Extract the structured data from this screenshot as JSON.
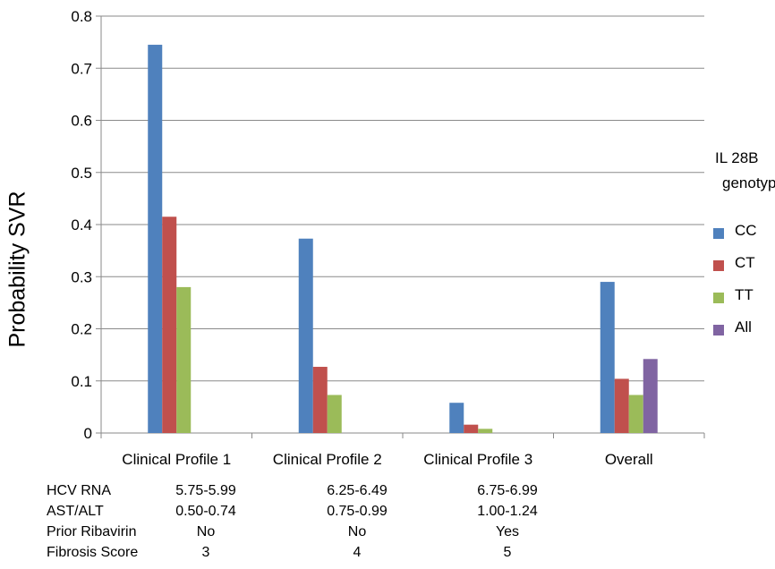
{
  "chart_data": {
    "type": "bar",
    "categories": [
      "Clinical Profile 1",
      "Clinical Profile 2",
      "Clinical Profile 3",
      "Overall"
    ],
    "series": [
      {
        "name": "CC",
        "color": "#4F81BD",
        "values": [
          0.745,
          0.373,
          0.058,
          0.29
        ]
      },
      {
        "name": "CT",
        "color": "#C0504D",
        "values": [
          0.415,
          0.127,
          0.016,
          0.104
        ]
      },
      {
        "name": "TT",
        "color": "#9BBB59",
        "values": [
          0.28,
          0.073,
          0.008,
          0.073
        ]
      },
      {
        "name": "All",
        "color": "#8064A2",
        "values": [
          null,
          null,
          null,
          0.142
        ]
      }
    ],
    "ylabel": "Probability SVR",
    "ylim": [
      0,
      0.8
    ],
    "yticks": [
      "0",
      "0.1",
      "0.2",
      "0.3",
      "0.4",
      "0.5",
      "0.6",
      "0.7",
      "0.8"
    ],
    "grid": "horizontal",
    "legend": {
      "title_line1": "IL 28B",
      "title_line2": "genotype",
      "placement": "right"
    }
  },
  "profile_table": {
    "rows": [
      {
        "label": "HCV RNA",
        "values": [
          "5.75-5.99",
          "6.25-6.49",
          "6.75-6.99"
        ]
      },
      {
        "label": "AST/ALT",
        "values": [
          "0.50-0.74",
          "0.75-0.99",
          "1.00-1.24"
        ]
      },
      {
        "label": "Prior Ribavirin",
        "values": [
          "No",
          "No",
          "Yes"
        ]
      },
      {
        "label": "Fibrosis Score",
        "values": [
          "3",
          "4",
          "5"
        ]
      }
    ]
  }
}
